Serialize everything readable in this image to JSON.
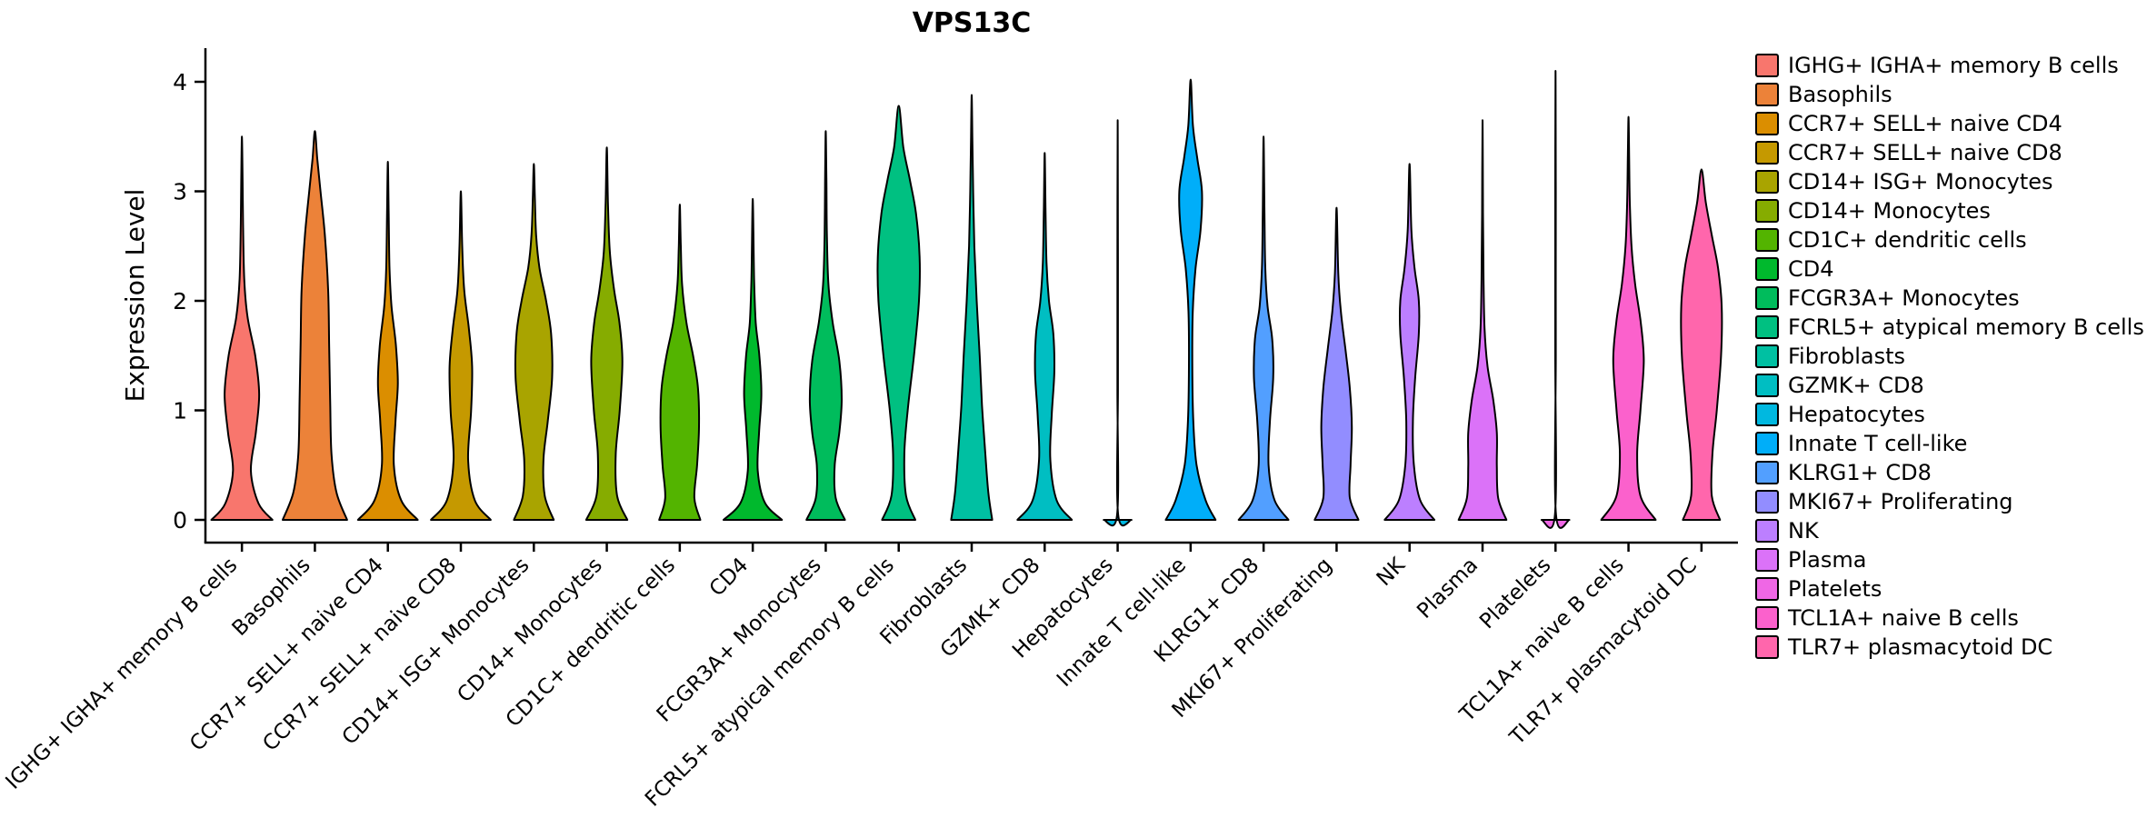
{
  "chart_data": {
    "type": "violin",
    "title": "VPS13C",
    "ylabel": "Expression Level",
    "xlabel": "",
    "ylim": [
      0,
      4.3
    ],
    "yticks": [
      0,
      1,
      2,
      3,
      4
    ],
    "grid": false,
    "legend_position": "right",
    "axis_color": "#000000",
    "outline_color": "#000000",
    "series": [
      {
        "name": "IGHG+ IGHA+ memory B cells",
        "color": "#F8766D",
        "max_expression": 3.5,
        "density_profile": [
          [
            0,
            0.92
          ],
          [
            0.15,
            0.5
          ],
          [
            0.45,
            0.27
          ],
          [
            0.8,
            0.42
          ],
          [
            1.15,
            0.52
          ],
          [
            1.5,
            0.4
          ],
          [
            1.85,
            0.17
          ],
          [
            2.2,
            0.07
          ],
          [
            2.7,
            0.035
          ],
          [
            3.1,
            0.02
          ],
          [
            3.5,
            0
          ]
        ]
      },
      {
        "name": "Basophils",
        "color": "#EC8239",
        "max_expression": 3.55,
        "density_profile": [
          [
            0,
            0.97
          ],
          [
            0.25,
            0.65
          ],
          [
            0.6,
            0.5
          ],
          [
            1.1,
            0.46
          ],
          [
            1.6,
            0.43
          ],
          [
            2.1,
            0.4
          ],
          [
            2.6,
            0.3
          ],
          [
            3.0,
            0.17
          ],
          [
            3.3,
            0.07
          ],
          [
            3.55,
            0
          ]
        ]
      },
      {
        "name": "CCR7+ SELL+ naive CD4",
        "color": "#DB8E00",
        "max_expression": 3.27,
        "density_profile": [
          [
            0,
            0.9
          ],
          [
            0.18,
            0.4
          ],
          [
            0.5,
            0.18
          ],
          [
            0.9,
            0.23
          ],
          [
            1.25,
            0.3
          ],
          [
            1.6,
            0.24
          ],
          [
            1.95,
            0.11
          ],
          [
            2.3,
            0.05
          ],
          [
            2.8,
            0.025
          ],
          [
            3.27,
            0
          ]
        ]
      },
      {
        "name": "CCR7+ SELL+ naive CD8",
        "color": "#C59900",
        "max_expression": 3.0,
        "density_profile": [
          [
            0,
            0.9
          ],
          [
            0.18,
            0.42
          ],
          [
            0.55,
            0.22
          ],
          [
            1.0,
            0.31
          ],
          [
            1.4,
            0.34
          ],
          [
            1.75,
            0.24
          ],
          [
            2.1,
            0.1
          ],
          [
            2.5,
            0.04
          ],
          [
            3.0,
            0
          ]
        ]
      },
      {
        "name": "CD14+ ISG+ Monocytes",
        "color": "#A9A400",
        "max_expression": 3.25,
        "density_profile": [
          [
            0,
            0.6
          ],
          [
            0.22,
            0.33
          ],
          [
            0.55,
            0.29
          ],
          [
            0.9,
            0.42
          ],
          [
            1.3,
            0.55
          ],
          [
            1.7,
            0.52
          ],
          [
            2.0,
            0.37
          ],
          [
            2.3,
            0.17
          ],
          [
            2.6,
            0.07
          ],
          [
            2.95,
            0.03
          ],
          [
            3.25,
            0
          ]
        ]
      },
      {
        "name": "CD14+ Monocytes",
        "color": "#86AC00",
        "max_expression": 3.4,
        "density_profile": [
          [
            0,
            0.62
          ],
          [
            0.22,
            0.31
          ],
          [
            0.6,
            0.27
          ],
          [
            1.0,
            0.39
          ],
          [
            1.45,
            0.47
          ],
          [
            1.8,
            0.38
          ],
          [
            2.1,
            0.22
          ],
          [
            2.45,
            0.09
          ],
          [
            2.9,
            0.035
          ],
          [
            3.4,
            0
          ]
        ]
      },
      {
        "name": "CD1C+ dendritic cells",
        "color": "#53B400",
        "max_expression": 2.88,
        "density_profile": [
          [
            0,
            0.62
          ],
          [
            0.2,
            0.44
          ],
          [
            0.5,
            0.52
          ],
          [
            0.85,
            0.58
          ],
          [
            1.2,
            0.55
          ],
          [
            1.5,
            0.4
          ],
          [
            1.8,
            0.2
          ],
          [
            2.15,
            0.07
          ],
          [
            2.5,
            0.03
          ],
          [
            2.88,
            0
          ]
        ]
      },
      {
        "name": "CD4",
        "color": "#00B92D",
        "max_expression": 2.93,
        "density_profile": [
          [
            0,
            0.88
          ],
          [
            0.16,
            0.36
          ],
          [
            0.45,
            0.15
          ],
          [
            0.8,
            0.19
          ],
          [
            1.15,
            0.26
          ],
          [
            1.5,
            0.2
          ],
          [
            1.8,
            0.09
          ],
          [
            2.2,
            0.04
          ],
          [
            2.93,
            0
          ]
        ]
      },
      {
        "name": "FCGR3A+ Monocytes",
        "color": "#00BC5C",
        "max_expression": 3.55,
        "density_profile": [
          [
            0,
            0.58
          ],
          [
            0.2,
            0.3
          ],
          [
            0.5,
            0.27
          ],
          [
            0.8,
            0.41
          ],
          [
            1.1,
            0.48
          ],
          [
            1.45,
            0.41
          ],
          [
            1.8,
            0.21
          ],
          [
            2.15,
            0.08
          ],
          [
            2.6,
            0.035
          ],
          [
            3.1,
            0.02
          ],
          [
            3.55,
            0
          ]
        ]
      },
      {
        "name": "FCRL5+ atypical memory B cells",
        "color": "#00C081",
        "max_expression": 3.78,
        "density_profile": [
          [
            0,
            0.5
          ],
          [
            0.22,
            0.22
          ],
          [
            0.6,
            0.17
          ],
          [
            1.0,
            0.27
          ],
          [
            1.5,
            0.46
          ],
          [
            2.0,
            0.61
          ],
          [
            2.4,
            0.63
          ],
          [
            2.8,
            0.52
          ],
          [
            3.1,
            0.34
          ],
          [
            3.4,
            0.14
          ],
          [
            3.78,
            0
          ]
        ]
      },
      {
        "name": "Fibroblasts",
        "color": "#00C0A2",
        "max_expression": 3.88,
        "density_profile": [
          [
            0,
            0.62
          ],
          [
            0.25,
            0.5
          ],
          [
            0.65,
            0.4
          ],
          [
            1.05,
            0.31
          ],
          [
            1.5,
            0.24
          ],
          [
            2.0,
            0.15
          ],
          [
            2.5,
            0.08
          ],
          [
            3.0,
            0.045
          ],
          [
            3.5,
            0.02
          ],
          [
            3.88,
            0
          ]
        ]
      },
      {
        "name": "GZMK+ CD8",
        "color": "#00BEC2",
        "max_expression": 3.35,
        "density_profile": [
          [
            0,
            0.82
          ],
          [
            0.18,
            0.36
          ],
          [
            0.55,
            0.17
          ],
          [
            0.95,
            0.21
          ],
          [
            1.35,
            0.29
          ],
          [
            1.7,
            0.26
          ],
          [
            2.0,
            0.13
          ],
          [
            2.35,
            0.055
          ],
          [
            2.85,
            0.025
          ],
          [
            3.35,
            0
          ]
        ]
      },
      {
        "name": "Hepatocytes",
        "color": "#00B8E0",
        "max_expression": 3.65,
        "density_profile": [
          [
            0,
            0.42
          ],
          [
            0.05,
            0.015
          ],
          [
            1.2,
            0.008
          ],
          [
            2.4,
            0.008
          ],
          [
            3.65,
            0
          ]
        ]
      },
      {
        "name": "Innate T cell-like",
        "color": "#00AEF9",
        "max_expression": 4.02,
        "density_profile": [
          [
            0,
            0.75
          ],
          [
            0.18,
            0.45
          ],
          [
            0.5,
            0.18
          ],
          [
            0.9,
            0.08
          ],
          [
            1.4,
            0.05
          ],
          [
            1.9,
            0.065
          ],
          [
            2.3,
            0.15
          ],
          [
            2.65,
            0.3
          ],
          [
            3.0,
            0.34
          ],
          [
            3.3,
            0.2
          ],
          [
            3.6,
            0.07
          ],
          [
            4.02,
            0
          ]
        ]
      },
      {
        "name": "KLRG1+ CD8",
        "color": "#529FFF",
        "max_expression": 3.5,
        "density_profile": [
          [
            0,
            0.75
          ],
          [
            0.18,
            0.33
          ],
          [
            0.5,
            0.15
          ],
          [
            0.9,
            0.19
          ],
          [
            1.3,
            0.29
          ],
          [
            1.65,
            0.26
          ],
          [
            1.95,
            0.12
          ],
          [
            2.3,
            0.05
          ],
          [
            2.8,
            0.025
          ],
          [
            3.5,
            0
          ]
        ]
      },
      {
        "name": "MKI67+ Proliferating",
        "color": "#928DFF",
        "max_expression": 2.85,
        "density_profile": [
          [
            0,
            0.66
          ],
          [
            0.2,
            0.4
          ],
          [
            0.5,
            0.42
          ],
          [
            0.85,
            0.46
          ],
          [
            1.2,
            0.4
          ],
          [
            1.55,
            0.27
          ],
          [
            1.9,
            0.13
          ],
          [
            2.25,
            0.05
          ],
          [
            2.85,
            0
          ]
        ]
      },
      {
        "name": "NK",
        "color": "#BC7FFF",
        "max_expression": 3.25,
        "density_profile": [
          [
            0,
            0.75
          ],
          [
            0.18,
            0.32
          ],
          [
            0.5,
            0.13
          ],
          [
            0.9,
            0.1
          ],
          [
            1.3,
            0.17
          ],
          [
            1.7,
            0.28
          ],
          [
            2.0,
            0.28
          ],
          [
            2.3,
            0.15
          ],
          [
            2.65,
            0.055
          ],
          [
            3.25,
            0
          ]
        ]
      },
      {
        "name": "Plasma",
        "color": "#DB72F8",
        "max_expression": 3.65,
        "density_profile": [
          [
            0,
            0.72
          ],
          [
            0.2,
            0.47
          ],
          [
            0.5,
            0.43
          ],
          [
            0.8,
            0.43
          ],
          [
            1.1,
            0.32
          ],
          [
            1.4,
            0.15
          ],
          [
            1.75,
            0.06
          ],
          [
            2.2,
            0.03
          ],
          [
            2.8,
            0.015
          ],
          [
            3.65,
            0
          ]
        ]
      },
      {
        "name": "Platelets",
        "color": "#EF67E5",
        "max_expression": 4.1,
        "density_profile": [
          [
            0,
            0.42
          ],
          [
            0.05,
            0.015
          ],
          [
            1.5,
            0.008
          ],
          [
            3.0,
            0.008
          ],
          [
            4.1,
            0
          ]
        ]
      },
      {
        "name": "TCL1A+ naive B cells",
        "color": "#FB61CC",
        "max_expression": 3.68,
        "density_profile": [
          [
            0,
            0.82
          ],
          [
            0.22,
            0.36
          ],
          [
            0.6,
            0.26
          ],
          [
            1.0,
            0.36
          ],
          [
            1.45,
            0.46
          ],
          [
            1.8,
            0.37
          ],
          [
            2.15,
            0.2
          ],
          [
            2.5,
            0.09
          ],
          [
            2.9,
            0.04
          ],
          [
            3.3,
            0.02
          ],
          [
            3.68,
            0
          ]
        ]
      },
      {
        "name": "TLR7+ plasmacytoid DC",
        "color": "#FF66AC",
        "max_expression": 3.2,
        "density_profile": [
          [
            0,
            0.56
          ],
          [
            0.22,
            0.31
          ],
          [
            0.6,
            0.33
          ],
          [
            1.0,
            0.46
          ],
          [
            1.5,
            0.59
          ],
          [
            1.95,
            0.61
          ],
          [
            2.3,
            0.5
          ],
          [
            2.6,
            0.31
          ],
          [
            2.9,
            0.13
          ],
          [
            3.2,
            0
          ]
        ]
      }
    ]
  }
}
